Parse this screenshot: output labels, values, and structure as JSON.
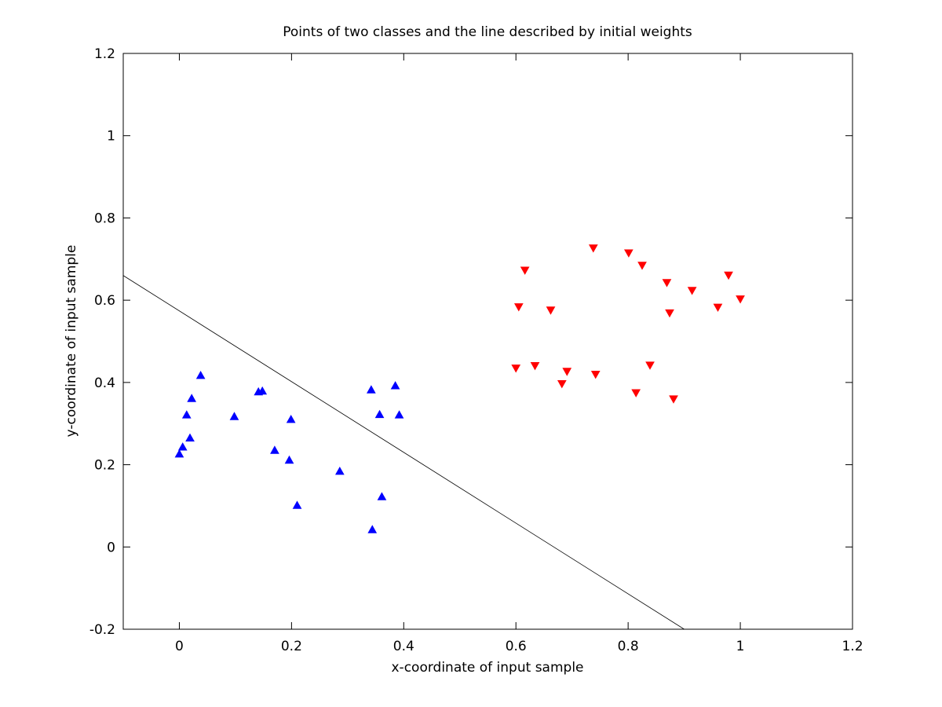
{
  "chart_data": {
    "type": "scatter",
    "title": "Points of two classes and the line described by initial weights",
    "xlabel": "x-coordinate of input sample",
    "ylabel": "y-coordinate of input sample",
    "xlim": [
      -0.1,
      1.2
    ],
    "ylim": [
      -0.2,
      1.2
    ],
    "xticks": [
      "0",
      "0.2",
      "0.4",
      "0.6",
      "0.8",
      "1",
      "1.2"
    ],
    "xtick_values": [
      0,
      0.2,
      0.4,
      0.6,
      0.8,
      1,
      1.2
    ],
    "yticks": [
      "-0.2",
      "0",
      "0.2",
      "0.4",
      "0.6",
      "0.8",
      "1",
      "1.2"
    ],
    "ytick_values": [
      -0.2,
      0,
      0.2,
      0.4,
      0.6,
      0.8,
      1,
      1.2
    ],
    "grid": false,
    "series": [
      {
        "marker": "triangle-up",
        "color": "#0000ff",
        "points": [
          [
            0.0,
            0.225
          ],
          [
            0.006,
            0.242
          ],
          [
            0.013,
            0.32
          ],
          [
            0.019,
            0.264
          ],
          [
            0.022,
            0.36
          ],
          [
            0.038,
            0.416
          ],
          [
            0.098,
            0.316
          ],
          [
            0.141,
            0.376
          ],
          [
            0.148,
            0.378
          ],
          [
            0.17,
            0.234
          ],
          [
            0.196,
            0.21
          ],
          [
            0.199,
            0.309
          ],
          [
            0.21,
            0.1
          ],
          [
            0.286,
            0.183
          ],
          [
            0.342,
            0.381
          ],
          [
            0.344,
            0.041
          ],
          [
            0.357,
            0.321
          ],
          [
            0.361,
            0.121
          ],
          [
            0.385,
            0.391
          ],
          [
            0.392,
            0.32
          ]
        ]
      },
      {
        "marker": "triangle-down",
        "color": "#ff0000",
        "points": [
          [
            0.6,
            0.436
          ],
          [
            0.605,
            0.585
          ],
          [
            0.616,
            0.674
          ],
          [
            0.634,
            0.442
          ],
          [
            0.662,
            0.577
          ],
          [
            0.682,
            0.398
          ],
          [
            0.691,
            0.428
          ],
          [
            0.738,
            0.728
          ],
          [
            0.742,
            0.421
          ],
          [
            0.801,
            0.716
          ],
          [
            0.814,
            0.376
          ],
          [
            0.825,
            0.686
          ],
          [
            0.839,
            0.443
          ],
          [
            0.869,
            0.644
          ],
          [
            0.874,
            0.57
          ],
          [
            0.881,
            0.361
          ],
          [
            0.914,
            0.625
          ],
          [
            0.96,
            0.584
          ],
          [
            0.979,
            0.662
          ],
          [
            1.0,
            0.604
          ]
        ]
      },
      {
        "type": "line",
        "color": "#000000",
        "points": [
          [
            -0.1,
            0.66
          ],
          [
            0.9,
            -0.2
          ]
        ]
      }
    ]
  }
}
